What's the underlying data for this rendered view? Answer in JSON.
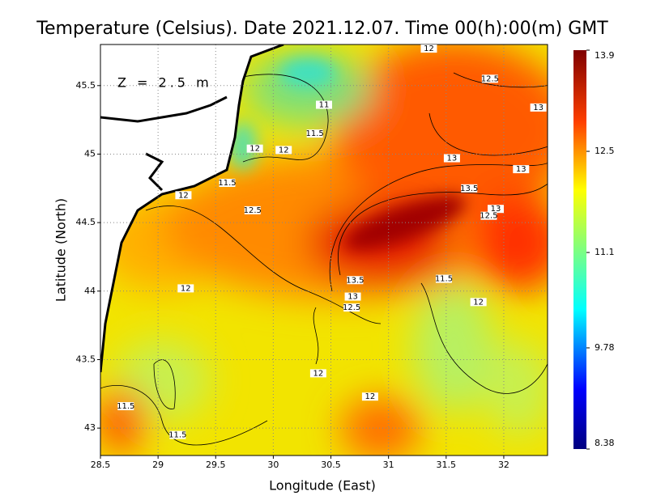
{
  "chart_data": {
    "type": "heatmap",
    "title": "Temperature (Celsius). Date 2021.12.07. Time 00(h):00(m) GMT",
    "annotation": "Z = 2.5 m",
    "x_label": "Longitude (East)",
    "y_label": "Latitude (North)",
    "xlim": [
      28.5,
      32.38
    ],
    "ylim": [
      42.8,
      45.8
    ],
    "xticks": [
      28.5,
      29,
      29.5,
      30,
      30.5,
      31,
      31.5,
      32
    ],
    "yticks": [
      43,
      43.5,
      44,
      44.5,
      45,
      45.5
    ],
    "grid": true,
    "colorbar_lim": [
      8.38,
      13.9
    ],
    "colorbar_ticks": [
      13.9,
      12.5,
      11.1,
      9.78,
      8.38
    ],
    "contour_labels": [
      {
        "value": 12,
        "lon": 31.35,
        "lat": 45.77
      },
      {
        "value": 12.5,
        "lon": 31.88,
        "lat": 45.55
      },
      {
        "value": 13,
        "lon": 32.3,
        "lat": 45.34
      },
      {
        "value": 11,
        "lon": 30.44,
        "lat": 45.36
      },
      {
        "value": 11.5,
        "lon": 30.36,
        "lat": 45.15
      },
      {
        "value": 12,
        "lon": 30.09,
        "lat": 45.03
      },
      {
        "value": 12,
        "lon": 29.84,
        "lat": 45.04
      },
      {
        "value": 11.5,
        "lon": 29.6,
        "lat": 44.79
      },
      {
        "value": 12,
        "lon": 29.22,
        "lat": 44.7
      },
      {
        "value": 13,
        "lon": 31.55,
        "lat": 44.97
      },
      {
        "value": 13,
        "lon": 32.15,
        "lat": 44.89
      },
      {
        "value": 13.5,
        "lon": 31.7,
        "lat": 44.75
      },
      {
        "value": 12.5,
        "lon": 29.82,
        "lat": 44.59
      },
      {
        "value": 13,
        "lon": 31.93,
        "lat": 44.6
      },
      {
        "value": 12.5,
        "lon": 31.87,
        "lat": 44.55
      },
      {
        "value": 13.5,
        "lon": 30.71,
        "lat": 44.08
      },
      {
        "value": 13,
        "lon": 30.69,
        "lat": 43.96
      },
      {
        "value": 12.5,
        "lon": 30.68,
        "lat": 43.88
      },
      {
        "value": 11.5,
        "lon": 31.48,
        "lat": 44.09
      },
      {
        "value": 12,
        "lon": 31.78,
        "lat": 43.92
      },
      {
        "value": 12,
        "lon": 29.24,
        "lat": 44.02
      },
      {
        "value": 12,
        "lon": 30.39,
        "lat": 43.4
      },
      {
        "value": 12,
        "lon": 30.84,
        "lat": 43.23
      },
      {
        "value": 11.5,
        "lon": 28.72,
        "lat": 43.16
      },
      {
        "value": 11.5,
        "lon": 29.17,
        "lat": 42.95
      }
    ]
  }
}
